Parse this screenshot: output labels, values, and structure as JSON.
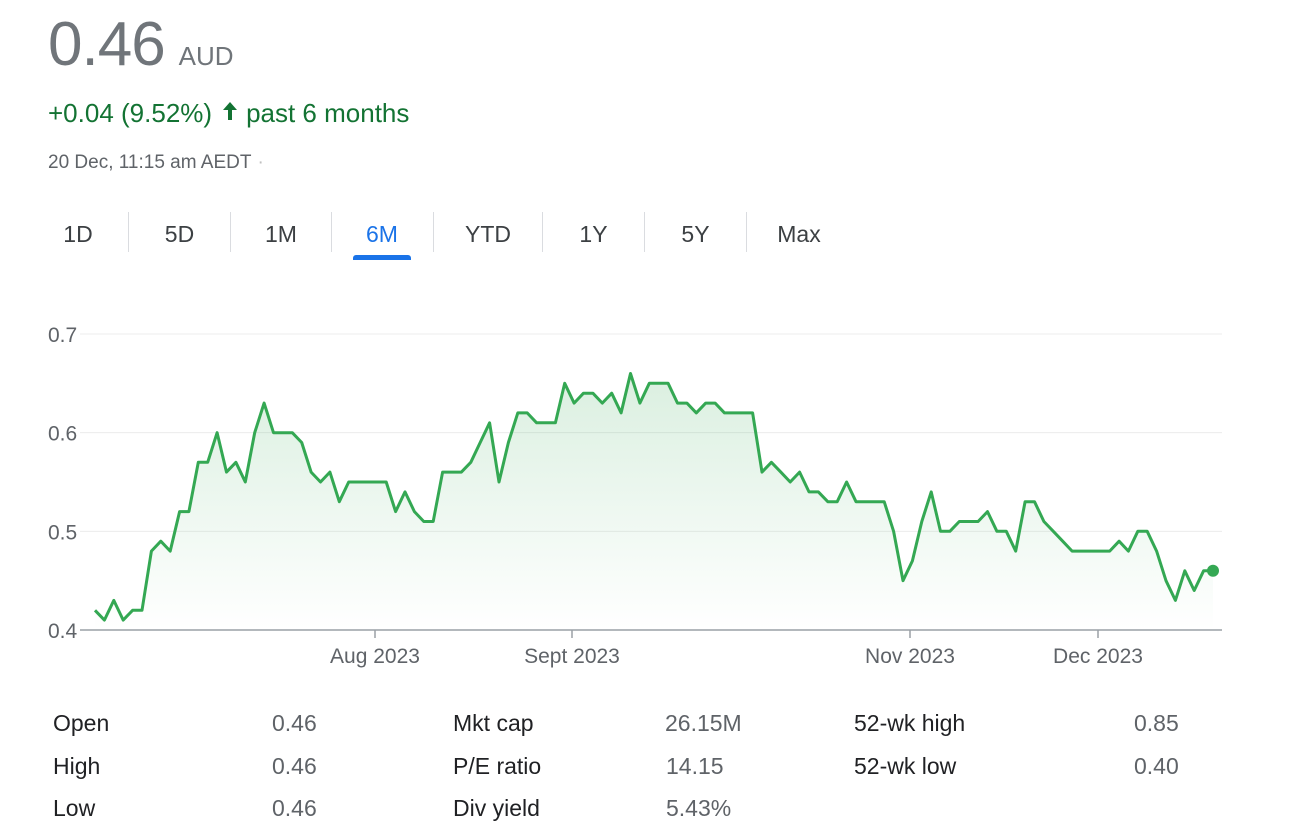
{
  "quote": {
    "price": "0.46",
    "currency": "AUD",
    "change": "+0.04 (9.52%)",
    "period": "past 6 months",
    "arrow_icon": "arrow-up-icon",
    "timestamp": "20 Dec, 11:15 am AEDT",
    "timestamp_sep": "·"
  },
  "tabs": [
    {
      "label": "1D"
    },
    {
      "label": "5D"
    },
    {
      "label": "1M"
    },
    {
      "label": "6M",
      "active": true
    },
    {
      "label": "YTD"
    },
    {
      "label": "1Y"
    },
    {
      "label": "5Y"
    },
    {
      "label": "Max"
    }
  ],
  "chart_data": {
    "type": "area",
    "x_ticks": [
      "Aug 2023",
      "Sept 2023",
      "Nov 2023",
      "Dec 2023"
    ],
    "y_ticks": [
      "0.7",
      "0.6",
      "0.5",
      "0.4"
    ],
    "ylim": [
      0.4,
      0.7
    ],
    "grid": true,
    "line_color": "#34a853",
    "values": [
      0.42,
      0.41,
      0.43,
      0.41,
      0.42,
      0.42,
      0.48,
      0.49,
      0.48,
      0.52,
      0.52,
      0.57,
      0.57,
      0.6,
      0.56,
      0.57,
      0.55,
      0.6,
      0.63,
      0.6,
      0.6,
      0.6,
      0.59,
      0.56,
      0.55,
      0.56,
      0.53,
      0.55,
      0.55,
      0.55,
      0.55,
      0.55,
      0.52,
      0.54,
      0.52,
      0.51,
      0.51,
      0.56,
      0.56,
      0.56,
      0.57,
      0.59,
      0.61,
      0.55,
      0.59,
      0.62,
      0.62,
      0.61,
      0.61,
      0.61,
      0.65,
      0.63,
      0.64,
      0.64,
      0.63,
      0.64,
      0.62,
      0.66,
      0.63,
      0.65,
      0.65,
      0.65,
      0.63,
      0.63,
      0.62,
      0.63,
      0.63,
      0.62,
      0.62,
      0.62,
      0.62,
      0.56,
      0.57,
      0.56,
      0.55,
      0.56,
      0.54,
      0.54,
      0.53,
      0.53,
      0.55,
      0.53,
      0.53,
      0.53,
      0.53,
      0.5,
      0.45,
      0.47,
      0.51,
      0.54,
      0.5,
      0.5,
      0.51,
      0.51,
      0.51,
      0.52,
      0.5,
      0.5,
      0.48,
      0.53,
      0.53,
      0.51,
      0.5,
      0.49,
      0.48,
      0.48,
      0.48,
      0.48,
      0.48,
      0.49,
      0.48,
      0.5,
      0.5,
      0.48,
      0.45,
      0.43,
      0.46,
      0.44,
      0.46,
      0.46
    ]
  },
  "stats": {
    "col1": [
      {
        "label": "Open",
        "value": "0.46"
      },
      {
        "label": "High",
        "value": "0.46"
      },
      {
        "label": "Low",
        "value": "0.46"
      }
    ],
    "col2": [
      {
        "label": "Mkt cap",
        "value": "26.15M"
      },
      {
        "label": "P/E ratio",
        "value": "14.15"
      },
      {
        "label": "Div yield",
        "value": "5.43%"
      }
    ],
    "col3": [
      {
        "label": "52-wk high",
        "value": "0.85"
      },
      {
        "label": "52-wk low",
        "value": "0.40"
      }
    ]
  }
}
